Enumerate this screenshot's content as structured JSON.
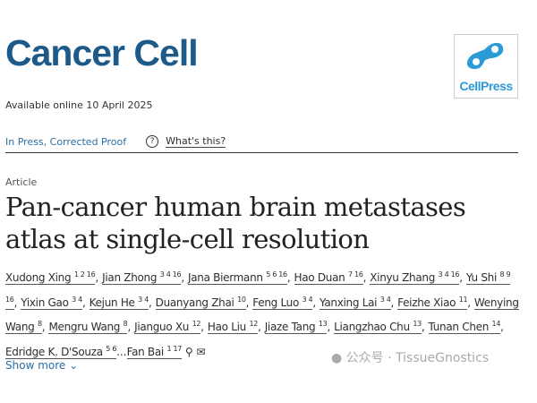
{
  "journal": "Cancer Cell",
  "publisher_logo": "CellPress",
  "available": "Available online 10 April 2025",
  "links": {
    "status": "In Press, Corrected Proof",
    "help_icon": "?",
    "whats_this": "What's this?"
  },
  "article_type": "Article",
  "title": "Pan-cancer human brain metastases atlas at single-cell resolution",
  "authors": [
    {
      "name": "Xudong Xing",
      "sup": "1 2 16"
    },
    {
      "name": "Jian Zhong",
      "sup": "3 4 16"
    },
    {
      "name": "Jana Biermann",
      "sup": "5 6 16"
    },
    {
      "name": "Hao Duan",
      "sup": "7 16"
    },
    {
      "name": "Xinyu Zhang",
      "sup": "3 4 16"
    },
    {
      "name": "Yu Shi",
      "sup": "8 9 16"
    },
    {
      "name": "Yixin Gao",
      "sup": "3 4"
    },
    {
      "name": "Kejun He",
      "sup": "3 4"
    },
    {
      "name": "Duanyang Zhai",
      "sup": "10"
    },
    {
      "name": "Feng Luo",
      "sup": "3 4"
    },
    {
      "name": "Yanxing Lai",
      "sup": "3 4"
    },
    {
      "name": "Feizhe Xiao",
      "sup": "11"
    },
    {
      "name": "Wenying Wang",
      "sup": "8"
    },
    {
      "name": "Mengru Wang",
      "sup": "8"
    },
    {
      "name": "Jianguo Xu",
      "sup": "12"
    },
    {
      "name": "Hao Liu",
      "sup": "12"
    },
    {
      "name": "Jiaze Tang",
      "sup": "13"
    },
    {
      "name": "Liangzhao Chu",
      "sup": "13"
    },
    {
      "name": "Tunan Chen",
      "sup": "14"
    },
    {
      "name": "Edridge K. D'Souza",
      "sup": "5 6"
    },
    {
      "name": "Fan Bai",
      "sup": "1 17"
    }
  ],
  "ellipsis": "...",
  "show_more": "Show more",
  "watermark": "公众号 · TissueGnostics"
}
